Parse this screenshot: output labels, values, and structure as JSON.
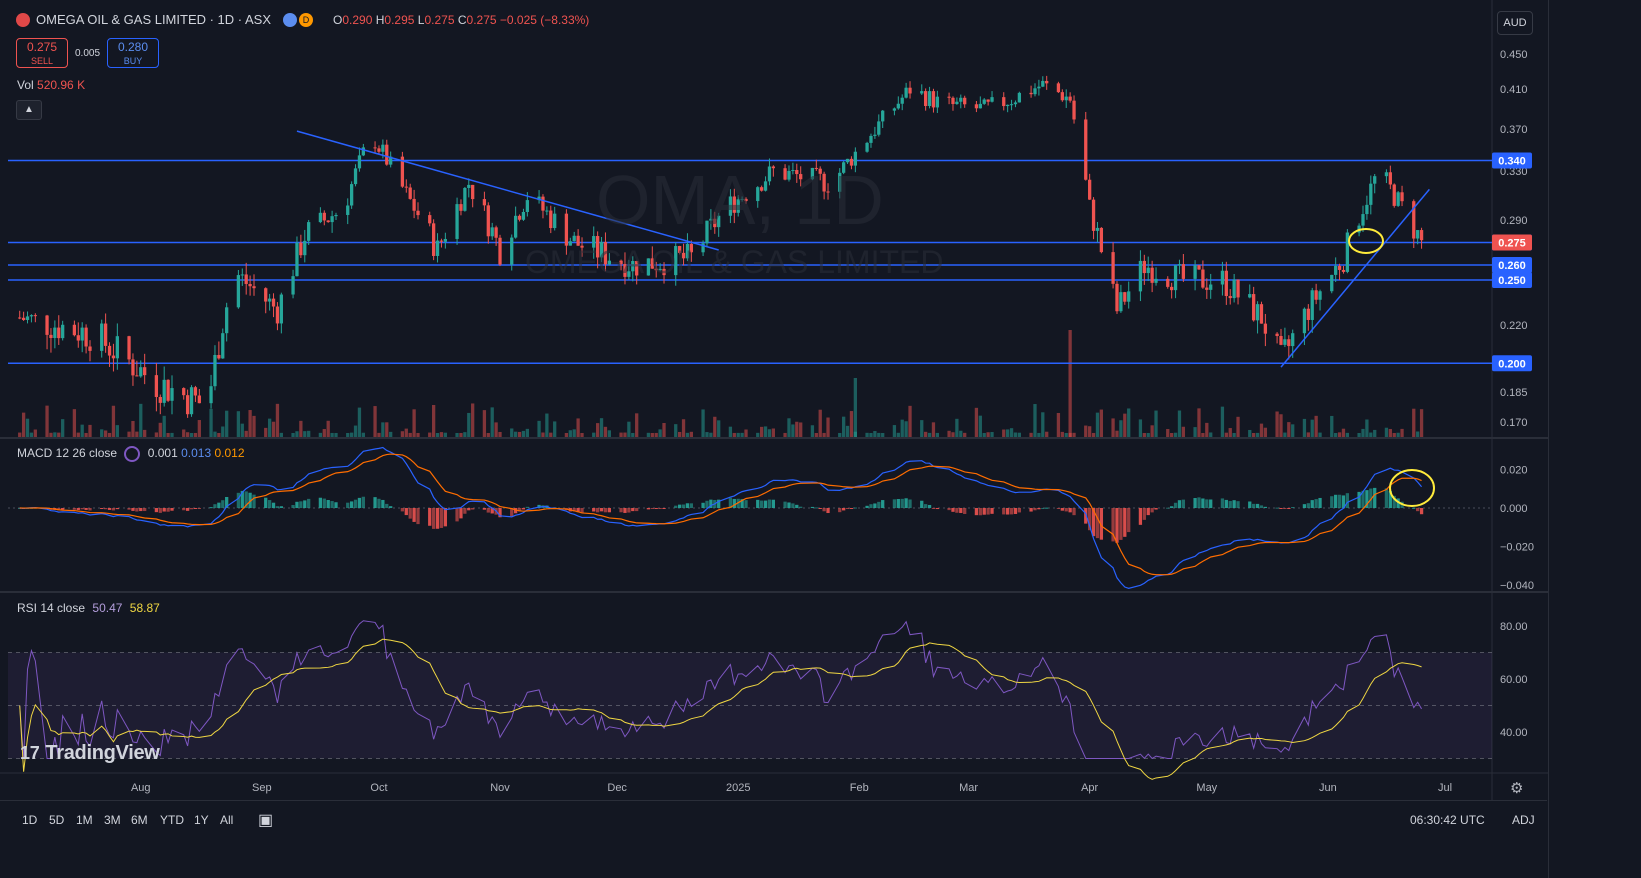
{
  "header": {
    "symbol": "OMEGA OIL & GAS LIMITED · 1D · ASX",
    "o": "0.290",
    "h": "0.295",
    "l": "0.275",
    "c": "0.275",
    "change": "−0.025 (−8.33%)"
  },
  "trade": {
    "sell_price": "0.275",
    "sell_label": "SELL",
    "spread": "0.005",
    "buy_price": "0.280",
    "buy_label": "BUY"
  },
  "volume_label": "Vol",
  "volume_value": "520.96 K",
  "currency": "AUD",
  "watermark": "OMA, 1D",
  "watermark_sub": "OMEGA OIL & GAS LIMITED",
  "macd": {
    "label": "MACD 12 26 close",
    "v1": "0.001",
    "v2": "0.013",
    "v3": "0.012"
  },
  "rsi": {
    "label": "RSI 14 close",
    "v1": "50.47",
    "v2": "58.87"
  },
  "brand": "TradingView",
  "ranges": [
    "1D",
    "5D",
    "1M",
    "3M",
    "6M",
    "YTD",
    "1Y",
    "All"
  ],
  "clock": "06:30:42 UTC",
  "adj": "ADJ",
  "colors": {
    "up": "#26a69a",
    "down": "#ef5350",
    "level": "#2962ff",
    "macd": "#2962ff",
    "signal": "#ff6d00",
    "rsi": "#7e57c2",
    "rsi_ma": "#f0d743",
    "annot": "#ffeb3b"
  },
  "chart_data": {
    "type": "candlestick",
    "price_axis": {
      "ticks": [
        0.45,
        0.41,
        0.37,
        0.33,
        0.29,
        0.22,
        0.185,
        0.17
      ]
    },
    "x_ticks": [
      "Aug",
      "Sep",
      "Oct",
      "Nov",
      "Dec",
      "2025",
      "Feb",
      "Mar",
      "Apr",
      "May",
      "Jun",
      "Jul"
    ],
    "horizontal_levels": [
      {
        "value": 0.34,
        "label": "0.340"
      },
      {
        "value": 0.275,
        "label": "0.275"
      },
      {
        "value": 0.26,
        "label": "0.260"
      },
      {
        "value": 0.25,
        "label": "0.250"
      },
      {
        "value": 0.2,
        "label": "0.200"
      }
    ],
    "last_price": {
      "value": 0.275,
      "label": "0.275"
    },
    "trendlines": [
      {
        "from": [
          "2024-09-10",
          0.368
        ],
        "to": [
          "2024-12-27",
          0.27
        ]
      },
      {
        "from": [
          "2025-05-20",
          0.198
        ],
        "to": [
          "2025-06-27",
          0.315
        ]
      }
    ],
    "macd_axis": {
      "ticks": [
        0.02,
        0.0,
        -0.02,
        -0.04
      ]
    },
    "rsi_axis": {
      "ticks": [
        80.0,
        60.0,
        40.0
      ],
      "bands": [
        70,
        30
      ]
    },
    "series_anchors": [
      [
        "2024-07-01",
        0.225
      ],
      [
        "2024-07-20",
        0.215
      ],
      [
        "2024-08-05",
        0.19
      ],
      [
        "2024-08-18",
        0.178
      ],
      [
        "2024-08-25",
        0.255
      ],
      [
        "2024-09-05",
        0.23
      ],
      [
        "2024-09-12",
        0.28
      ],
      [
        "2024-09-22",
        0.3
      ],
      [
        "2024-09-29",
        0.365
      ],
      [
        "2024-10-08",
        0.31
      ],
      [
        "2024-10-16",
        0.27
      ],
      [
        "2024-10-24",
        0.32
      ],
      [
        "2024-11-01",
        0.27
      ],
      [
        "2024-11-08",
        0.31
      ],
      [
        "2024-11-20",
        0.275
      ],
      [
        "2024-12-05",
        0.26
      ],
      [
        "2024-12-20",
        0.265
      ],
      [
        "2024-12-29",
        0.3
      ],
      [
        "2025-01-10",
        0.33
      ],
      [
        "2025-01-25",
        0.32
      ],
      [
        "2025-02-05",
        0.37
      ],
      [
        "2025-02-14",
        0.41
      ],
      [
        "2025-02-22",
        0.395
      ],
      [
        "2025-03-05",
        0.39
      ],
      [
        "2025-03-12",
        0.4
      ],
      [
        "2025-03-20",
        0.415
      ],
      [
        "2025-03-27",
        0.4
      ],
      [
        "2025-04-01",
        0.3
      ],
      [
        "2025-04-08",
        0.23
      ],
      [
        "2025-04-15",
        0.26
      ],
      [
        "2025-04-25",
        0.25
      ],
      [
        "2025-05-05",
        0.25
      ],
      [
        "2025-05-15",
        0.225
      ],
      [
        "2025-05-20",
        0.2
      ],
      [
        "2025-05-28",
        0.235
      ],
      [
        "2025-06-05",
        0.265
      ],
      [
        "2025-06-14",
        0.33
      ],
      [
        "2025-06-20",
        0.3
      ],
      [
        "2025-06-25",
        0.275
      ]
    ]
  }
}
